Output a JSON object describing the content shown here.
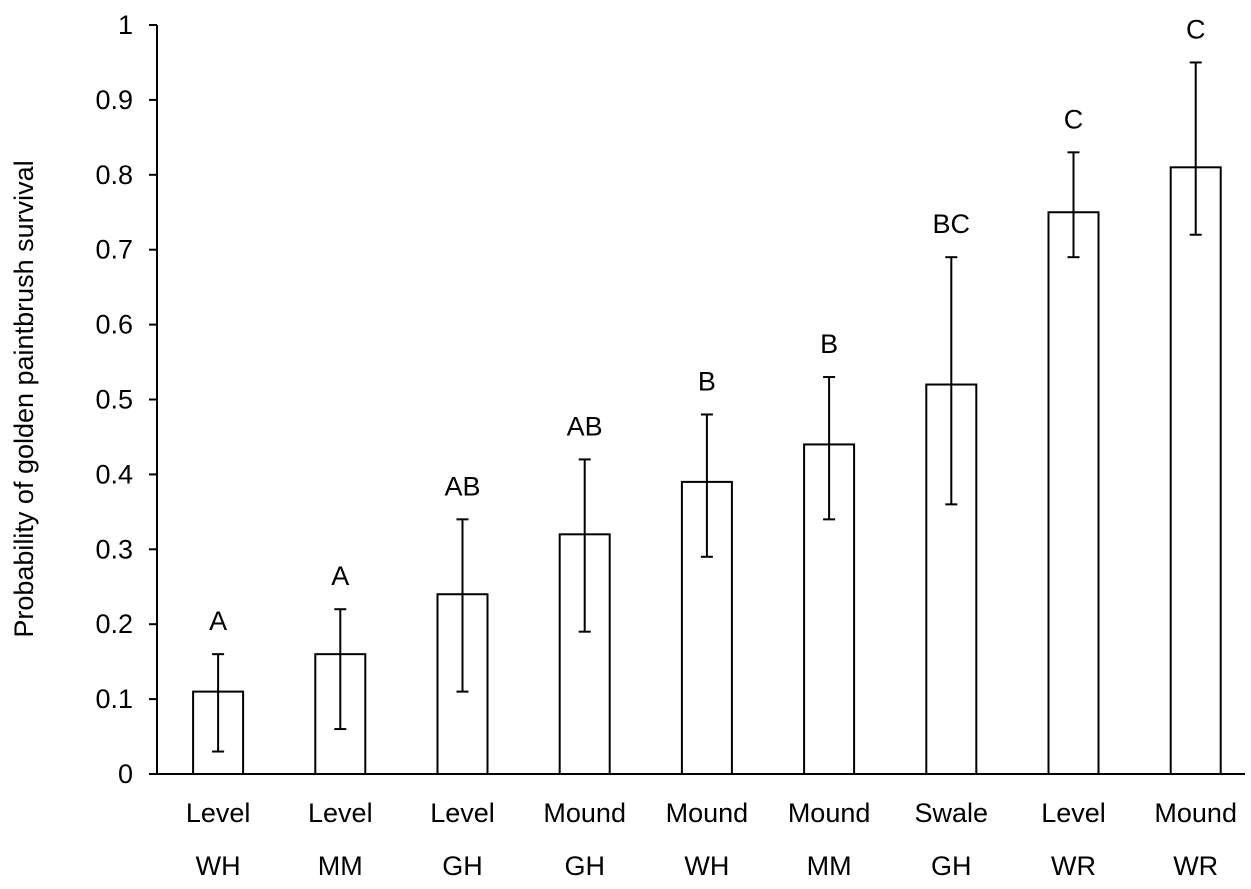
{
  "chart_data": {
    "type": "bar",
    "ylabel": "Probability of golden paintbrush survival",
    "xlabel": "",
    "ylim": [
      0,
      1
    ],
    "y_ticks": [
      "0",
      "0.1",
      "0.2",
      "0.3",
      "0.4",
      "0.5",
      "0.6",
      "0.7",
      "0.8",
      "0.9",
      "1"
    ],
    "grid": false,
    "categories": [
      {
        "line1": "Level",
        "line2": "WH"
      },
      {
        "line1": "Level",
        "line2": "MM"
      },
      {
        "line1": "Level",
        "line2": "GH"
      },
      {
        "line1": "Mound",
        "line2": "GH"
      },
      {
        "line1": "Mound",
        "line2": "WH"
      },
      {
        "line1": "Mound",
        "line2": "MM"
      },
      {
        "line1": "Swale",
        "line2": "GH"
      },
      {
        "line1": "Level",
        "line2": "WR"
      },
      {
        "line1": "Mound",
        "line2": "WR"
      }
    ],
    "values": [
      0.11,
      0.16,
      0.24,
      0.32,
      0.39,
      0.44,
      0.52,
      0.75,
      0.81
    ],
    "error_low": [
      0.03,
      0.06,
      0.11,
      0.19,
      0.29,
      0.34,
      0.36,
      0.69,
      0.72
    ],
    "error_high": [
      0.16,
      0.22,
      0.34,
      0.42,
      0.48,
      0.53,
      0.69,
      0.83,
      0.95
    ],
    "group_letters": [
      "A",
      "A",
      "AB",
      "AB",
      "B",
      "B",
      "BC",
      "C",
      "C"
    ],
    "bar_fill": "#ffffff",
    "bar_stroke": "#000000"
  }
}
